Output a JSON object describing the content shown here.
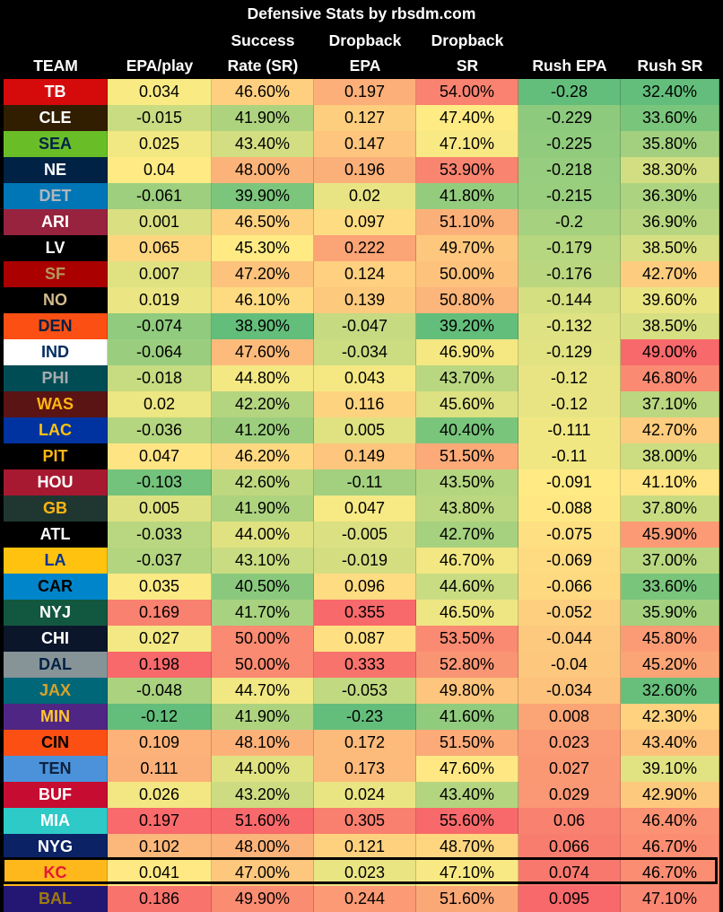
{
  "chart_data": {
    "type": "table",
    "title": "Defensive Stats by rbsdm.com",
    "columns": [
      {
        "key": "team",
        "label": [
          "",
          "",
          "TEAM"
        ]
      },
      {
        "key": "epa",
        "label": [
          "",
          "",
          "EPA/play"
        ]
      },
      {
        "key": "sr",
        "label": [
          "",
          "Success",
          "Rate (SR)"
        ]
      },
      {
        "key": "db_epa",
        "label": [
          "",
          "Dropback",
          "EPA"
        ]
      },
      {
        "key": "db_sr",
        "label": [
          "",
          "Dropback",
          "SR"
        ]
      },
      {
        "key": "rush_epa",
        "label": [
          "",
          "",
          "Rush EPA"
        ]
      },
      {
        "key": "rush_sr",
        "label": [
          "",
          "",
          "Rush SR"
        ]
      }
    ],
    "rows": [
      {
        "team": "TB",
        "team_bg": "#d50a0a",
        "team_fg": "#ffffff",
        "epa": "0.034",
        "sr": "46.60%",
        "db_epa": "0.197",
        "db_sr": "54.00%",
        "rush_epa": "-0.28",
        "rush_sr": "32.40%"
      },
      {
        "team": "CLE",
        "team_bg": "#311d00",
        "team_fg": "#ffffff",
        "epa": "-0.015",
        "sr": "41.90%",
        "db_epa": "0.127",
        "db_sr": "47.40%",
        "rush_epa": "-0.229",
        "rush_sr": "33.60%"
      },
      {
        "team": "SEA",
        "team_bg": "#69be28",
        "team_fg": "#002244",
        "epa": "0.025",
        "sr": "43.40%",
        "db_epa": "0.147",
        "db_sr": "47.10%",
        "rush_epa": "-0.225",
        "rush_sr": "35.80%"
      },
      {
        "team": "NE",
        "team_bg": "#002244",
        "team_fg": "#ffffff",
        "epa": "0.04",
        "sr": "48.00%",
        "db_epa": "0.196",
        "db_sr": "53.90%",
        "rush_epa": "-0.218",
        "rush_sr": "38.30%"
      },
      {
        "team": "DET",
        "team_bg": "#0076b6",
        "team_fg": "#b0b7bc",
        "epa": "-0.061",
        "sr": "39.90%",
        "db_epa": "0.02",
        "db_sr": "41.80%",
        "rush_epa": "-0.215",
        "rush_sr": "36.30%"
      },
      {
        "team": "ARI",
        "team_bg": "#97233f",
        "team_fg": "#ffffff",
        "epa": "0.001",
        "sr": "46.50%",
        "db_epa": "0.097",
        "db_sr": "51.10%",
        "rush_epa": "-0.2",
        "rush_sr": "36.90%"
      },
      {
        "team": "LV",
        "team_bg": "#000000",
        "team_fg": "#ffffff",
        "epa": "0.065",
        "sr": "45.30%",
        "db_epa": "0.222",
        "db_sr": "49.70%",
        "rush_epa": "-0.179",
        "rush_sr": "38.50%"
      },
      {
        "team": "SF",
        "team_bg": "#aa0000",
        "team_fg": "#b3995d",
        "epa": "0.007",
        "sr": "47.20%",
        "db_epa": "0.124",
        "db_sr": "50.00%",
        "rush_epa": "-0.176",
        "rush_sr": "42.70%"
      },
      {
        "team": "NO",
        "team_bg": "#000000",
        "team_fg": "#d3bc8d",
        "epa": "0.019",
        "sr": "46.10%",
        "db_epa": "0.139",
        "db_sr": "50.80%",
        "rush_epa": "-0.144",
        "rush_sr": "39.60%"
      },
      {
        "team": "DEN",
        "team_bg": "#fb4f14",
        "team_fg": "#002244",
        "epa": "-0.074",
        "sr": "38.90%",
        "db_epa": "-0.047",
        "db_sr": "39.20%",
        "rush_epa": "-0.132",
        "rush_sr": "38.50%"
      },
      {
        "team": "IND",
        "team_bg": "#ffffff",
        "team_fg": "#002c5f",
        "epa": "-0.064",
        "sr": "47.60%",
        "db_epa": "-0.034",
        "db_sr": "46.90%",
        "rush_epa": "-0.129",
        "rush_sr": "49.00%"
      },
      {
        "team": "PHI",
        "team_bg": "#004c54",
        "team_fg": "#a5acaf",
        "epa": "-0.018",
        "sr": "44.80%",
        "db_epa": "0.043",
        "db_sr": "43.70%",
        "rush_epa": "-0.12",
        "rush_sr": "46.80%"
      },
      {
        "team": "WAS",
        "team_bg": "#5a1414",
        "team_fg": "#ffb612",
        "epa": "0.02",
        "sr": "42.20%",
        "db_epa": "0.116",
        "db_sr": "45.60%",
        "rush_epa": "-0.12",
        "rush_sr": "37.10%"
      },
      {
        "team": "LAC",
        "team_bg": "#0033a0",
        "team_fg": "#ffc20e",
        "epa": "-0.036",
        "sr": "41.20%",
        "db_epa": "0.005",
        "db_sr": "40.40%",
        "rush_epa": "-0.111",
        "rush_sr": "42.70%"
      },
      {
        "team": "PIT",
        "team_bg": "#000000",
        "team_fg": "#ffb612",
        "epa": "0.047",
        "sr": "46.20%",
        "db_epa": "0.149",
        "db_sr": "51.50%",
        "rush_epa": "-0.11",
        "rush_sr": "38.00%"
      },
      {
        "team": "HOU",
        "team_bg": "#a71930",
        "team_fg": "#ffffff",
        "epa": "-0.103",
        "sr": "42.60%",
        "db_epa": "-0.11",
        "db_sr": "43.50%",
        "rush_epa": "-0.091",
        "rush_sr": "41.10%"
      },
      {
        "team": "GB",
        "team_bg": "#203731",
        "team_fg": "#ffb612",
        "epa": "0.005",
        "sr": "41.90%",
        "db_epa": "0.047",
        "db_sr": "43.80%",
        "rush_epa": "-0.088",
        "rush_sr": "37.80%"
      },
      {
        "team": "ATL",
        "team_bg": "#000000",
        "team_fg": "#ffffff",
        "epa": "-0.033",
        "sr": "44.00%",
        "db_epa": "-0.005",
        "db_sr": "42.70%",
        "rush_epa": "-0.075",
        "rush_sr": "45.90%"
      },
      {
        "team": "LA",
        "team_bg": "#ffc20e",
        "team_fg": "#003594",
        "epa": "-0.037",
        "sr": "43.10%",
        "db_epa": "-0.019",
        "db_sr": "46.70%",
        "rush_epa": "-0.069",
        "rush_sr": "37.00%"
      },
      {
        "team": "CAR",
        "team_bg": "#0085ca",
        "team_fg": "#000000",
        "epa": "0.035",
        "sr": "40.50%",
        "db_epa": "0.096",
        "db_sr": "44.60%",
        "rush_epa": "-0.066",
        "rush_sr": "33.60%"
      },
      {
        "team": "NYJ",
        "team_bg": "#125740",
        "team_fg": "#ffffff",
        "epa": "0.169",
        "sr": "41.70%",
        "db_epa": "0.355",
        "db_sr": "46.50%",
        "rush_epa": "-0.052",
        "rush_sr": "35.90%"
      },
      {
        "team": "CHI",
        "team_bg": "#0b162a",
        "team_fg": "#ffffff",
        "epa": "0.027",
        "sr": "50.00%",
        "db_epa": "0.087",
        "db_sr": "53.50%",
        "rush_epa": "-0.044",
        "rush_sr": "45.80%"
      },
      {
        "team": "DAL",
        "team_bg": "#869397",
        "team_fg": "#002244",
        "epa": "0.198",
        "sr": "50.00%",
        "db_epa": "0.333",
        "db_sr": "52.80%",
        "rush_epa": "-0.04",
        "rush_sr": "45.20%"
      },
      {
        "team": "JAX",
        "team_bg": "#006778",
        "team_fg": "#d7a22a",
        "epa": "-0.048",
        "sr": "44.70%",
        "db_epa": "-0.053",
        "db_sr": "49.80%",
        "rush_epa": "-0.034",
        "rush_sr": "32.60%"
      },
      {
        "team": "MIN",
        "team_bg": "#4f2683",
        "team_fg": "#ffc62f",
        "epa": "-0.12",
        "sr": "41.90%",
        "db_epa": "-0.23",
        "db_sr": "41.60%",
        "rush_epa": "0.008",
        "rush_sr": "42.30%"
      },
      {
        "team": "CIN",
        "team_bg": "#fb4f14",
        "team_fg": "#000000",
        "epa": "0.109",
        "sr": "48.10%",
        "db_epa": "0.172",
        "db_sr": "51.50%",
        "rush_epa": "0.023",
        "rush_sr": "43.40%"
      },
      {
        "team": "TEN",
        "team_bg": "#4b92db",
        "team_fg": "#0c2340",
        "epa": "0.111",
        "sr": "44.00%",
        "db_epa": "0.173",
        "db_sr": "47.60%",
        "rush_epa": "0.027",
        "rush_sr": "39.10%"
      },
      {
        "team": "BUF",
        "team_bg": "#c60c30",
        "team_fg": "#ffffff",
        "epa": "0.026",
        "sr": "43.20%",
        "db_epa": "0.024",
        "db_sr": "43.40%",
        "rush_epa": "0.029",
        "rush_sr": "42.90%"
      },
      {
        "team": "MIA",
        "team_bg": "#2ecac7",
        "team_fg": "#ffffff",
        "epa": "0.197",
        "sr": "51.60%",
        "db_epa": "0.305",
        "db_sr": "55.60%",
        "rush_epa": "0.06",
        "rush_sr": "46.40%"
      },
      {
        "team": "NYG",
        "team_bg": "#0b2265",
        "team_fg": "#ffffff",
        "epa": "0.102",
        "sr": "48.00%",
        "db_epa": "0.121",
        "db_sr": "48.70%",
        "rush_epa": "0.066",
        "rush_sr": "46.70%"
      },
      {
        "team": "KC",
        "team_bg": "#ffb81c",
        "team_fg": "#e31837",
        "epa": "0.041",
        "sr": "47.00%",
        "db_epa": "0.023",
        "db_sr": "47.10%",
        "rush_epa": "0.074",
        "rush_sr": "46.70%",
        "highlighted": true
      },
      {
        "team": "BAL",
        "team_bg": "#241773",
        "team_fg": "#9e7c0c",
        "epa": "0.186",
        "sr": "49.90%",
        "db_epa": "0.244",
        "db_sr": "51.60%",
        "rush_epa": "0.095",
        "rush_sr": "47.10%"
      }
    ],
    "color_scale": {
      "good": "#63be7b",
      "mid": "#ffeb84",
      "bad": "#f8696b"
    }
  }
}
